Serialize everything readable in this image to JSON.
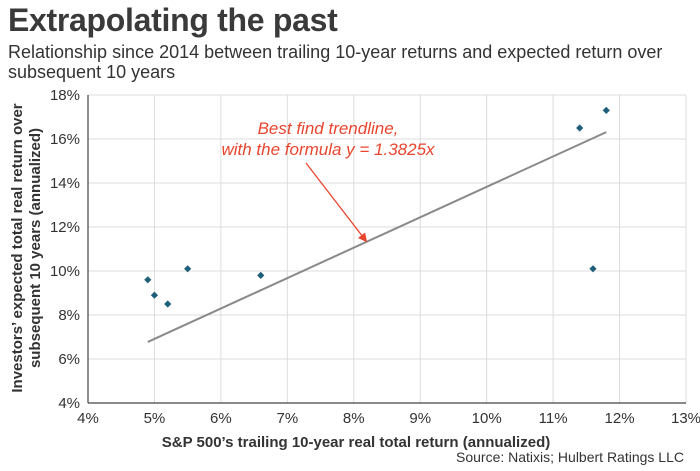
{
  "header": {
    "title": "Extrapolating the past",
    "subtitle": "Relationship since 2014 between trailing 10-year returns and expected return over subsequent 10 years"
  },
  "source": "Source: Natixis; Hulbert Ratings LLC",
  "chart_data": {
    "type": "scatter",
    "xlabel": "S&P 500’s trailing 10-year real total return (annualized)",
    "ylabel_lines": [
      "Investors’ expected total real return over",
      "subsequent 10 years (annualized)"
    ],
    "xlim": [
      4,
      13
    ],
    "ylim": [
      4,
      18
    ],
    "x_ticks": [
      4,
      5,
      6,
      7,
      8,
      9,
      10,
      11,
      12,
      13
    ],
    "y_ticks": [
      4,
      6,
      8,
      10,
      12,
      14,
      16,
      18
    ],
    "x_tick_labels": [
      "4%",
      "5%",
      "6%",
      "7%",
      "8%",
      "9%",
      "10%",
      "11%",
      "12%",
      "13%"
    ],
    "y_tick_labels": [
      "4%",
      "6%",
      "8%",
      "10%",
      "12%",
      "14%",
      "16%",
      "18%"
    ],
    "grid": true,
    "series": [
      {
        "points": [
          {
            "x": 4.9,
            "y": 9.6
          },
          {
            "x": 5.0,
            "y": 8.9
          },
          {
            "x": 5.2,
            "y": 8.5
          },
          {
            "x": 5.5,
            "y": 10.1
          },
          {
            "x": 6.6,
            "y": 9.8
          },
          {
            "x": 11.4,
            "y": 16.5
          },
          {
            "x": 11.6,
            "y": 10.1
          },
          {
            "x": 11.8,
            "y": 17.3
          }
        ],
        "color": "#1f5f7a"
      }
    ],
    "trendline": {
      "x_start": 4.9,
      "x_end": 11.8,
      "slope": 1.3825,
      "color": "#8a8a8a"
    },
    "annotation": {
      "lines": [
        "Best find trendline,",
        "with the formula y = 1.3825x"
      ],
      "color": "#e8452e",
      "points_to": {
        "x": 8.2,
        "y": 11.3
      }
    }
  }
}
